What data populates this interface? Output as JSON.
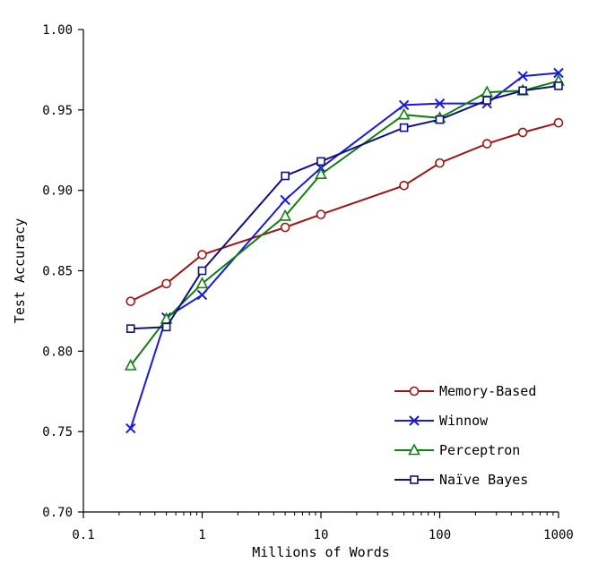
{
  "chart_data": {
    "type": "line",
    "xlabel": "Millions of Words",
    "ylabel": "Test Accuracy",
    "x_scale": "log",
    "xlim": [
      0.1,
      1000
    ],
    "ylim": [
      0.7,
      1.0
    ],
    "x_ticks": [
      0.1,
      1,
      10,
      100,
      1000
    ],
    "x_tick_labels": [
      "0.1",
      "1",
      "10",
      "100",
      "1000"
    ],
    "y_ticks": [
      0.7,
      0.75,
      0.8,
      0.85,
      0.9,
      0.95,
      1.0
    ],
    "y_tick_labels": [
      "0.70",
      "0.75",
      "0.80",
      "0.85",
      "0.90",
      "0.95",
      "1.00"
    ],
    "grid": false,
    "legend_position": "bottom-right",
    "series": [
      {
        "name": "Memory-Based",
        "color": "#a01414",
        "marker": "circle",
        "x": [
          0.25,
          0.5,
          1,
          5,
          10,
          50,
          100,
          250,
          500,
          1000
        ],
        "y": [
          0.831,
          0.842,
          0.86,
          0.877,
          0.885,
          0.903,
          0.917,
          0.929,
          0.936,
          0.942
        ]
      },
      {
        "name": "Winnow",
        "color": "#1818e0",
        "marker": "x",
        "x": [
          0.25,
          0.5,
          1,
          5,
          10,
          50,
          100,
          250,
          500,
          1000
        ],
        "y": [
          0.752,
          0.821,
          0.835,
          0.894,
          0.914,
          0.953,
          0.954,
          0.954,
          0.971,
          0.973
        ]
      },
      {
        "name": "Perceptron",
        "color": "#108010",
        "marker": "triangle",
        "x": [
          0.25,
          0.5,
          1,
          5,
          10,
          50,
          100,
          250,
          500,
          1000
        ],
        "y": [
          0.791,
          0.82,
          0.842,
          0.884,
          0.91,
          0.947,
          0.945,
          0.961,
          0.962,
          0.968
        ]
      },
      {
        "name": "Naïve Bayes",
        "color": "#101080",
        "marker": "square",
        "x": [
          0.25,
          0.5,
          1,
          5,
          10,
          50,
          100,
          250,
          500,
          1000
        ],
        "y": [
          0.814,
          0.815,
          0.85,
          0.909,
          0.918,
          0.939,
          0.944,
          0.956,
          0.962,
          0.965
        ]
      }
    ]
  }
}
